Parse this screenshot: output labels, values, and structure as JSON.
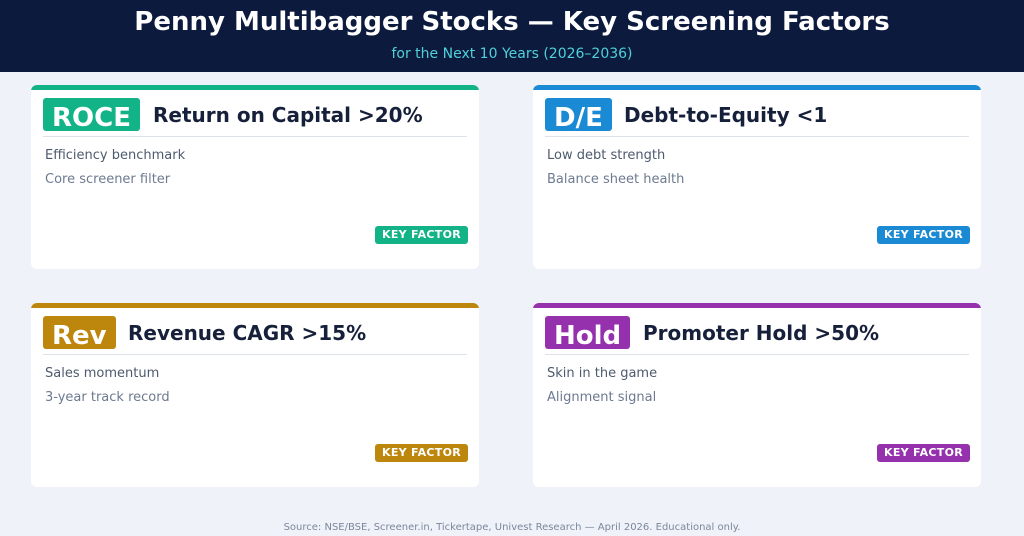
{
  "header": {
    "title": "Penny Multibagger Stocks — Key Screening Factors",
    "subtitle": "for the Next 10 Years (2026–2036)"
  },
  "cards": [
    {
      "badge": "ROCE",
      "title": "Return on Capital >20%",
      "line1": "Efficiency benchmark",
      "line2": "Core screener filter",
      "tag": "KEY FACTOR",
      "color": "#12b386"
    },
    {
      "badge": "D/E",
      "title": "Debt-to-Equity <1",
      "line1": "Low debt strength",
      "line2": "Balance sheet health",
      "tag": "KEY FACTOR",
      "color": "#1a8ad4"
    },
    {
      "badge": "Rev",
      "title": "Revenue CAGR >15%",
      "line1": "Sales momentum",
      "line2": "3-year track record",
      "tag": "KEY FACTOR",
      "color": "#bd860d"
    },
    {
      "badge": "Hold",
      "title": "Promoter Hold >50%",
      "line1": "Skin in the game",
      "line2": "Alignment signal",
      "tag": "KEY FACTOR",
      "color": "#9531ad"
    }
  ],
  "footer": {
    "source": "Source: NSE/BSE, Screener.in, Tickertape, Univest Research — April 2026. Educational only."
  }
}
